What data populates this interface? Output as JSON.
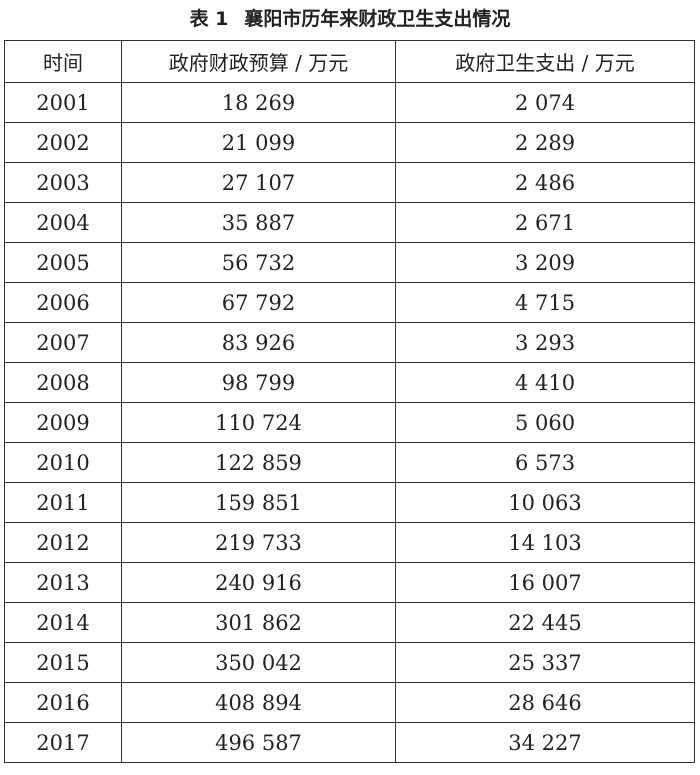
{
  "header": {
    "label": "表 1",
    "title": "襄阳市历年来财政卫生支出情况"
  },
  "table": {
    "columns": [
      "时间",
      "政府财政预算 / 万元",
      "政府卫生支出 / 万元"
    ],
    "rows": [
      [
        "2001",
        "18 269",
        "2 074"
      ],
      [
        "2002",
        "21 099",
        "2 289"
      ],
      [
        "2003",
        "27 107",
        "2 486"
      ],
      [
        "2004",
        "35 887",
        "2 671"
      ],
      [
        "2005",
        "56 732",
        "3 209"
      ],
      [
        "2006",
        "67 792",
        "4 715"
      ],
      [
        "2007",
        "83 926",
        "3 293"
      ],
      [
        "2008",
        "98 799",
        "4 410"
      ],
      [
        "2009",
        "110 724",
        "5 060"
      ],
      [
        "2010",
        "122 859",
        "6 573"
      ],
      [
        "2011",
        "159 851",
        "10 063"
      ],
      [
        "2012",
        "219 733",
        "14 103"
      ],
      [
        "2013",
        "240 916",
        "16 007"
      ],
      [
        "2014",
        "301 862",
        "22 445"
      ],
      [
        "2015",
        "350 042",
        "25 337"
      ],
      [
        "2016",
        "408 894",
        "28 646"
      ],
      [
        "2017",
        "496 587",
        "34 227"
      ]
    ]
  }
}
